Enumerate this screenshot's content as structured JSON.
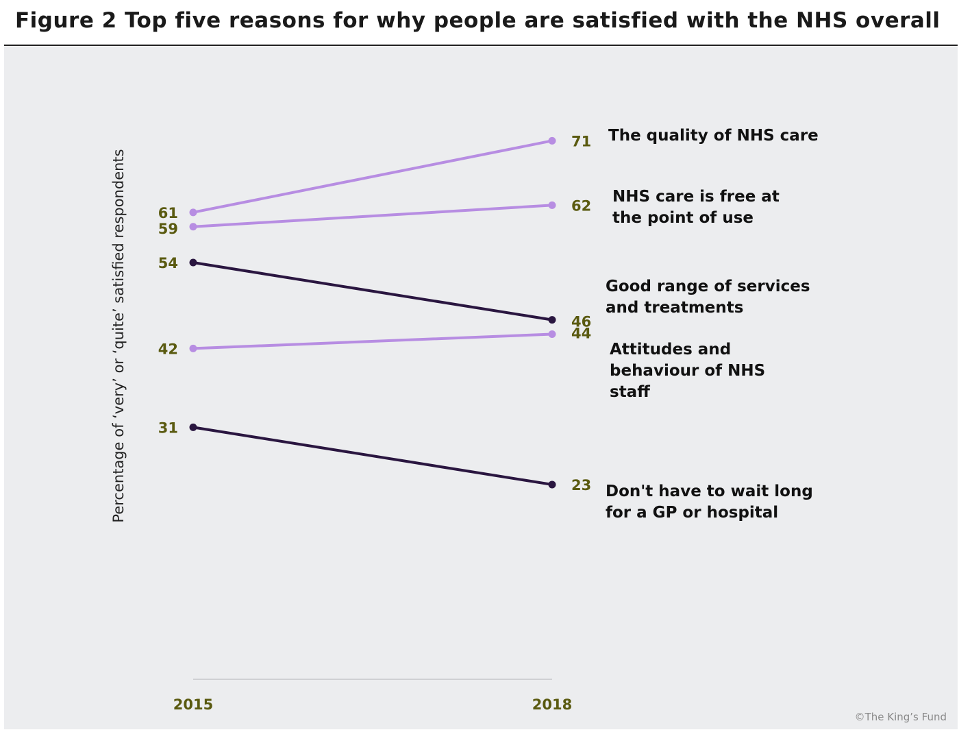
{
  "chart_data": {
    "type": "line",
    "title": "Figure 2 Top five reasons for why people are satisfied with the NHS overall",
    "ylabel": "Percentage of ‘very’ or ‘quite’ satisfied respondents",
    "xlabel": "",
    "categories": [
      "2015",
      "2018"
    ],
    "ylim": [
      0,
      90
    ],
    "series": [
      {
        "name": "The quality of NHS care",
        "label_lines": [
          "The quality of NHS care"
        ],
        "values": [
          61,
          71
        ],
        "color": "#b78de2"
      },
      {
        "name": "NHS care is free at the point of use",
        "label_lines": [
          "NHS care is free at",
          "the point of use"
        ],
        "values": [
          59,
          62
        ],
        "color": "#b78de2"
      },
      {
        "name": "Good range of services and treatments",
        "label_lines": [
          "Good range of services",
          "and treatments"
        ],
        "values": [
          54,
          46
        ],
        "color": "#2a1640"
      },
      {
        "name": "Attitudes and behaviour of NHS staff",
        "label_lines": [
          "Attitudes and",
          "behaviour of NHS",
          "staff"
        ],
        "values": [
          42,
          44
        ],
        "color": "#b78de2"
      },
      {
        "name": "Don't have to wait long for a GP or hospital",
        "label_lines": [
          "Don't have to wait long",
          "for a GP or hospital"
        ],
        "values": [
          31,
          23
        ],
        "color": "#2a1640"
      }
    ],
    "grid": false,
    "legend": "direct labels at right"
  },
  "credit": "©The King’s Fund"
}
